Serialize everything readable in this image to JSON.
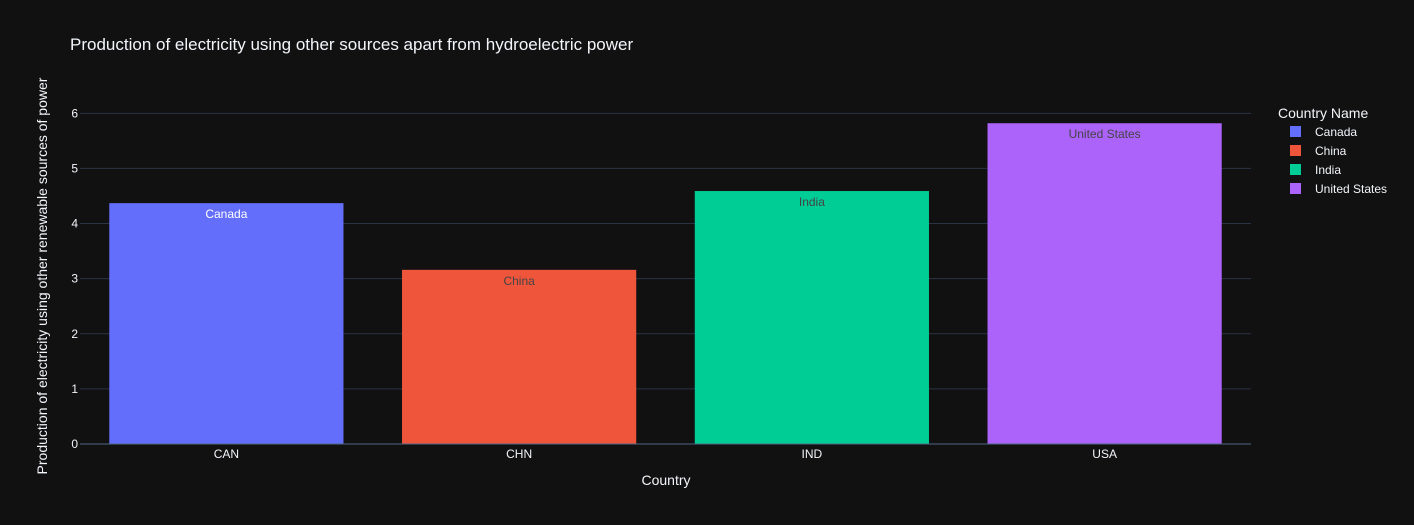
{
  "chart_data": {
    "type": "bar",
    "title": "Production of electricity using other sources apart from hydroelectric power",
    "xlabel": "Country",
    "ylabel": "Production of electricity using other renewable sources of power",
    "categories": [
      "CAN",
      "CHN",
      "IND",
      "USA"
    ],
    "ylim": [
      0,
      6.55
    ],
    "yticks": [
      0,
      1,
      2,
      3,
      4,
      5,
      6
    ],
    "grid": true,
    "legend": {
      "title": "Country Name",
      "placement": "top-right"
    },
    "series": [
      {
        "name": "Canada",
        "category": "CAN",
        "value": 4.37,
        "label": "Canada",
        "color": "#636efa",
        "label_color": "#ffffff"
      },
      {
        "name": "China",
        "category": "CHN",
        "value": 3.16,
        "label": "China",
        "color": "#ef553b",
        "label_color": "#444444"
      },
      {
        "name": "India",
        "category": "IND",
        "value": 4.59,
        "label": "India",
        "color": "#00cc96",
        "label_color": "#444444"
      },
      {
        "name": "United States",
        "category": "USA",
        "value": 5.82,
        "label": "United States",
        "color": "#ab63fa",
        "label_color": "#444444"
      }
    ]
  },
  "colors": {
    "background": "#111111",
    "grid": "#283442",
    "text": "#f2f5fa"
  }
}
